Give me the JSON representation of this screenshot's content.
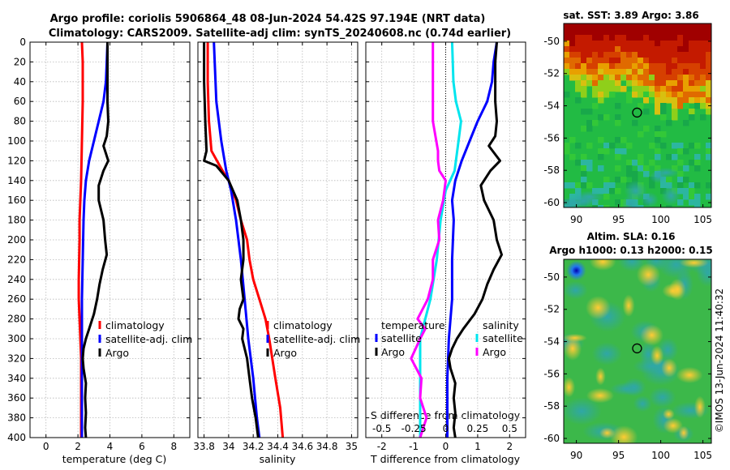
{
  "title": {
    "line1": "Argo profile: coriolis 5906864_48 08-Jun-2024 54.42S 97.194E (NRT data)",
    "line2": "Climatology: CARS2009. Satellite-adj clim: synTS_20240608.nc (0.74d earlier)"
  },
  "credit": "©IMOS 13-Jun-2024 11:40:32",
  "chart_data": [
    {
      "type": "line",
      "id": "temperature",
      "xlabel": "temperature (deg C)",
      "ylabel": "",
      "xlim": [
        -1,
        9
      ],
      "ylim": [
        400,
        0
      ],
      "xticks": [
        "0",
        "2",
        "4",
        "6",
        "8"
      ],
      "yticks": [
        "0",
        "20",
        "40",
        "60",
        "80",
        "100",
        "120",
        "140",
        "160",
        "180",
        "200",
        "220",
        "240",
        "260",
        "280",
        "300",
        "320",
        "340",
        "360",
        "380",
        "400"
      ],
      "grid": true,
      "legend": [
        "climatology",
        "satellite-adj. clim",
        "Argo"
      ],
      "series": [
        {
          "name": "climatology",
          "color": "#ff0000",
          "depth": [
            0,
            20,
            60,
            100,
            140,
            180,
            200,
            240,
            260,
            280,
            300,
            320,
            360,
            400
          ],
          "values": [
            2.25,
            2.3,
            2.3,
            2.25,
            2.2,
            2.1,
            2.1,
            2.05,
            2.05,
            2.1,
            2.15,
            2.2,
            2.2,
            2.2
          ]
        },
        {
          "name": "satellite-adj. clim",
          "color": "#0000ff",
          "depth": [
            0,
            20,
            40,
            60,
            80,
            100,
            120,
            140,
            160,
            180,
            220,
            260,
            300,
            340,
            400
          ],
          "values": [
            3.85,
            3.8,
            3.75,
            3.6,
            3.3,
            3.0,
            2.7,
            2.5,
            2.4,
            2.35,
            2.3,
            2.25,
            2.25,
            2.25,
            2.25
          ]
        },
        {
          "name": "Argo",
          "color": "#000000",
          "depth": [
            0,
            20,
            40,
            60,
            80,
            95,
            105,
            120,
            130,
            145,
            160,
            180,
            200,
            215,
            230,
            245,
            260,
            275,
            290,
            300,
            310,
            320,
            330,
            345,
            360,
            375,
            390,
            400
          ],
          "values": [
            3.85,
            3.85,
            3.85,
            3.85,
            3.9,
            3.8,
            3.6,
            3.9,
            3.6,
            3.3,
            3.3,
            3.6,
            3.7,
            3.8,
            3.55,
            3.35,
            3.2,
            3.0,
            2.7,
            2.5,
            2.35,
            2.3,
            2.35,
            2.5,
            2.45,
            2.5,
            2.45,
            2.5
          ]
        }
      ]
    },
    {
      "type": "line",
      "id": "salinity",
      "xlabel": "salinity",
      "xlim": [
        33.75,
        35.05
      ],
      "ylim": [
        400,
        0
      ],
      "xticks": [
        "33.8",
        "34",
        "34.2",
        "34.4",
        "34.6",
        "34.8",
        "35"
      ],
      "grid": true,
      "legend": [
        "climatology",
        "satellite-adj. clim",
        "Argo"
      ],
      "series": [
        {
          "name": "climatology",
          "color": "#ff0000",
          "depth": [
            0,
            40,
            80,
            110,
            130,
            140,
            160,
            180,
            200,
            220,
            240,
            260,
            280,
            300,
            340,
            370,
            400
          ],
          "values": [
            33.83,
            33.83,
            33.84,
            33.86,
            33.95,
            34.0,
            34.06,
            34.1,
            34.15,
            34.17,
            34.2,
            34.25,
            34.3,
            34.33,
            34.38,
            34.42,
            34.44
          ]
        },
        {
          "name": "satellite-adj. clim",
          "color": "#0000ff",
          "depth": [
            0,
            30,
            60,
            100,
            130,
            150,
            180,
            220,
            260,
            300,
            340,
            380,
            400
          ],
          "values": [
            33.88,
            33.89,
            33.9,
            33.94,
            33.98,
            34.02,
            34.06,
            34.1,
            34.13,
            34.16,
            34.2,
            34.23,
            34.25
          ]
        },
        {
          "name": "Argo",
          "color": "#000000",
          "depth": [
            0,
            40,
            80,
            110,
            120,
            125,
            140,
            160,
            180,
            200,
            220,
            240,
            260,
            270,
            280,
            290,
            300,
            320,
            340,
            360,
            380,
            400
          ],
          "values": [
            33.8,
            33.8,
            33.81,
            33.82,
            33.8,
            33.9,
            34.0,
            34.07,
            34.1,
            34.12,
            34.12,
            34.1,
            34.12,
            34.09,
            34.08,
            34.12,
            34.11,
            34.15,
            34.17,
            34.19,
            34.22,
            34.24
          ]
        }
      ]
    },
    {
      "type": "line",
      "id": "difference",
      "xlabel": "T difference from climatology",
      "xlabel_top": "S difference from climatology",
      "xlim": [
        -2.5,
        2.5
      ],
      "ylim": [
        400,
        0
      ],
      "xticks": [
        "-2",
        "-1",
        "0",
        "1",
        "2"
      ],
      "xticks_s": [
        "-0.5",
        "-0.25",
        "0",
        "0.25",
        "0.5"
      ],
      "grid": true,
      "legend_t_title": "temperature",
      "legend_s_title": "salinity",
      "legend_t": [
        "satellite",
        "Argo"
      ],
      "legend_s": [
        "satellite",
        "Argo"
      ],
      "series": [
        {
          "name": "T satellite",
          "color": "#0000ff",
          "depth": [
            0,
            20,
            40,
            60,
            80,
            100,
            120,
            140,
            160,
            180,
            220,
            260,
            300,
            340,
            400
          ],
          "values": [
            1.6,
            1.5,
            1.45,
            1.3,
            1.0,
            0.75,
            0.5,
            0.3,
            0.2,
            0.25,
            0.2,
            0.2,
            0.1,
            0.05,
            0.05
          ]
        },
        {
          "name": "T Argo",
          "color": "#000000",
          "depth": [
            0,
            20,
            40,
            60,
            80,
            95,
            105,
            120,
            130,
            145,
            160,
            180,
            200,
            215,
            230,
            245,
            260,
            275,
            290,
            300,
            310,
            320,
            330,
            345,
            360,
            375,
            390,
            400
          ],
          "values": [
            1.6,
            1.55,
            1.55,
            1.55,
            1.6,
            1.55,
            1.35,
            1.7,
            1.4,
            1.1,
            1.2,
            1.5,
            1.6,
            1.75,
            1.5,
            1.3,
            1.15,
            0.9,
            0.55,
            0.35,
            0.2,
            0.1,
            0.15,
            0.3,
            0.25,
            0.3,
            0.25,
            0.3
          ]
        },
        {
          "name": "S satellite",
          "color": "#00e5ee",
          "depth": [
            0,
            40,
            60,
            80,
            100,
            130,
            150,
            180,
            220,
            260,
            300,
            340,
            380,
            400
          ],
          "values": [
            0.05,
            0.06,
            0.08,
            0.12,
            0.1,
            0.07,
            0.0,
            -0.04,
            -0.07,
            -0.12,
            -0.2,
            -0.2,
            -0.2,
            -0.2
          ]
        },
        {
          "name": "S Argo",
          "color": "#ff00ff",
          "depth": [
            0,
            40,
            80,
            110,
            120,
            130,
            140,
            160,
            180,
            200,
            220,
            240,
            260,
            280,
            290,
            300,
            320,
            340,
            360,
            380,
            400
          ],
          "values": [
            -0.1,
            -0.1,
            -0.1,
            -0.06,
            -0.06,
            -0.05,
            0.0,
            -0.02,
            -0.06,
            -0.05,
            -0.1,
            -0.1,
            -0.14,
            -0.22,
            -0.16,
            -0.2,
            -0.27,
            -0.19,
            -0.2,
            -0.15,
            -0.2
          ]
        }
      ]
    },
    {
      "type": "heatmap",
      "id": "sst",
      "title": "sat. SST: 3.89 Argo: 3.86",
      "xlim": [
        88.5,
        106
      ],
      "ylim": [
        -60.3,
        -48.9
      ],
      "xticks": [
        "90",
        "95",
        "100",
        "105"
      ],
      "yticks": [
        "-50",
        "-52",
        "-54",
        "-56",
        "-58",
        "-60"
      ],
      "argo_lon": 97.194,
      "argo_lat": -54.42
    },
    {
      "type": "heatmap",
      "id": "sla",
      "title_line1": "Altim. SLA: 0.16",
      "title_line2": "Argo h1000: 0.13 h2000: 0.15",
      "xlim": [
        88.5,
        106
      ],
      "ylim": [
        -60.3,
        -48.9
      ],
      "xticks": [
        "90",
        "95",
        "100",
        "105"
      ],
      "yticks": [
        "-50",
        "-52",
        "-54",
        "-56",
        "-58",
        "-60"
      ],
      "argo_lon": 97.194,
      "argo_lat": -54.42
    }
  ]
}
